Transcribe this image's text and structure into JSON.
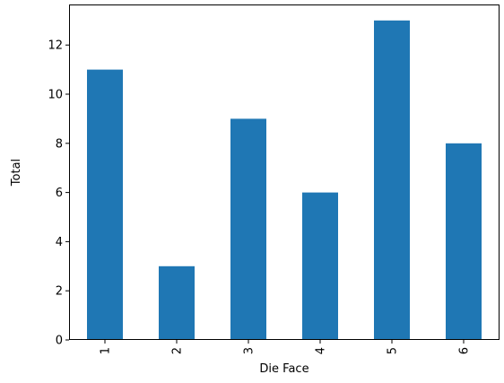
{
  "chart_data": {
    "type": "bar",
    "categories": [
      "1",
      "2",
      "3",
      "4",
      "5",
      "6"
    ],
    "values": [
      11,
      3,
      9,
      6,
      13,
      8
    ],
    "xlabel": "Die Face",
    "ylabel": "Total",
    "ylim": [
      0,
      13.65
    ],
    "yticks": [
      "0",
      "2",
      "4",
      "6",
      "8",
      "10",
      "12"
    ],
    "bar_color": "#1f77b4",
    "grid": false,
    "x_tick_rotation": "vertical"
  }
}
